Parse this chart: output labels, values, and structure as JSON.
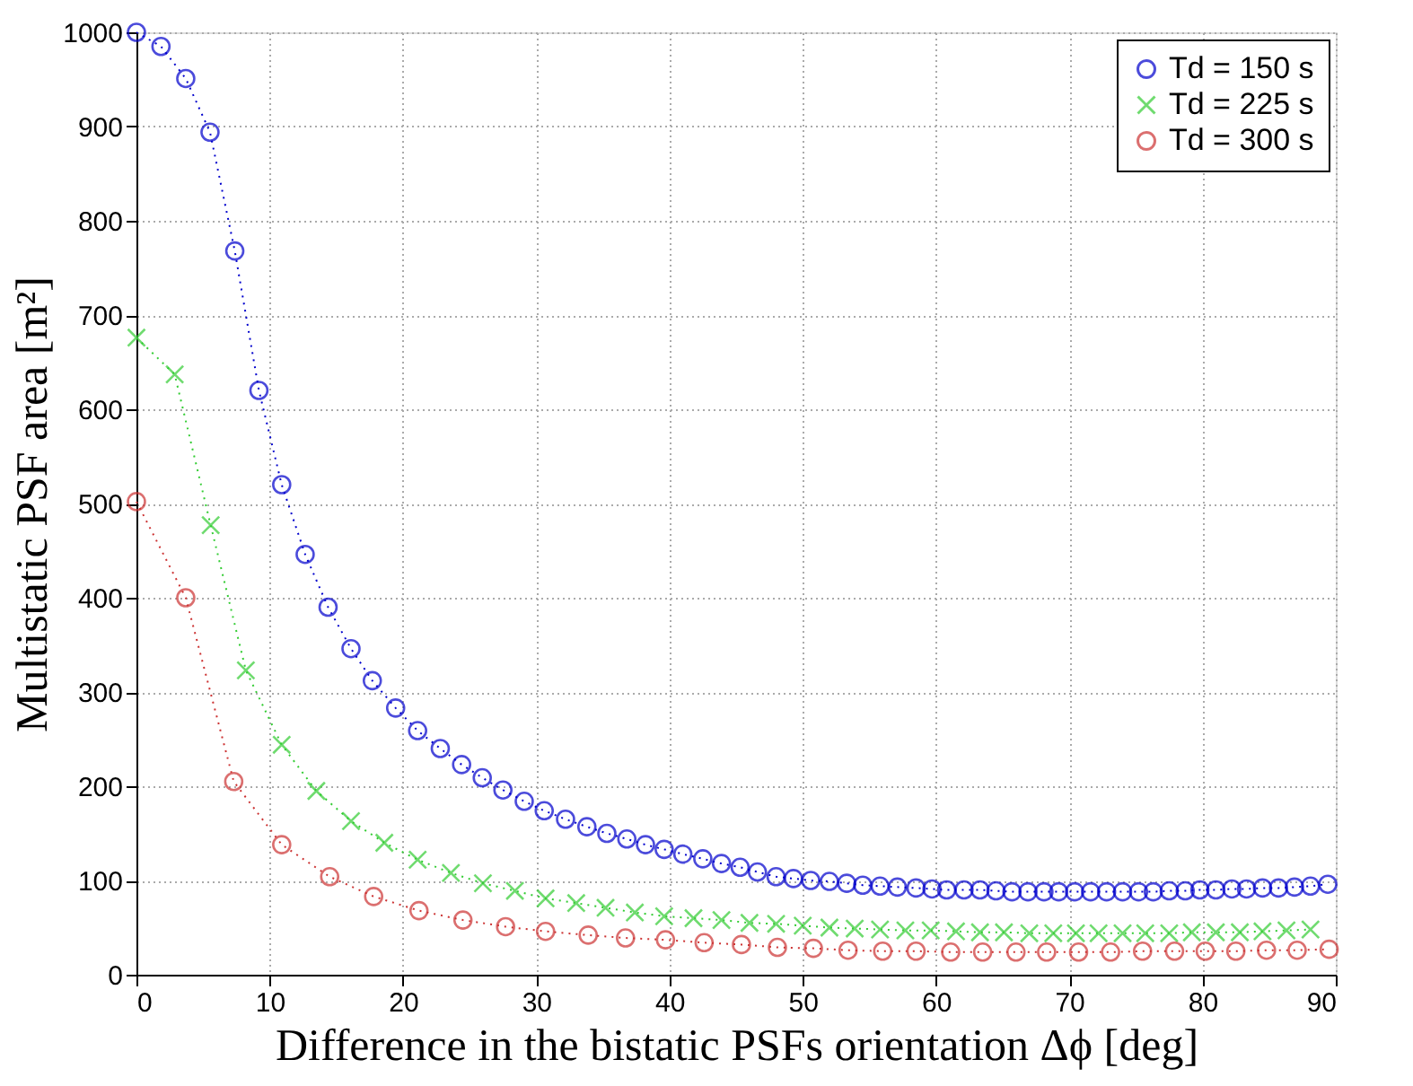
{
  "chart_data": {
    "type": "line",
    "xlabel": "Difference in the bistatic PSFs orientation Δϕ [deg]",
    "ylabel": "Multistatic PSF area [m²]",
    "xlim": [
      0,
      90
    ],
    "xticks": [
      0,
      10,
      20,
      30,
      40,
      50,
      60,
      70,
      80,
      90
    ],
    "ylim": [
      0,
      1000
    ],
    "yticks": [
      0,
      100,
      200,
      300,
      400,
      500,
      600,
      700,
      800,
      900,
      1000
    ],
    "grid": true,
    "legend": "top right",
    "line_style": "dotted",
    "series": [
      {
        "name": "Td = 150 s",
        "color": "#0000cc",
        "marker": "circle",
        "x": [
          0,
          1.84,
          3.7,
          5.52,
          7.38,
          9.19,
          10.9,
          12.66,
          14.38,
          16.1,
          17.7,
          19.45,
          21.1,
          22.8,
          24.4,
          25.95,
          27.5,
          29.1,
          30.6,
          32.2,
          33.8,
          35.3,
          36.8,
          38.2,
          39.6,
          41.0,
          42.5,
          43.9,
          45.3,
          46.6,
          48.0,
          49.3,
          50.6,
          52.0,
          53.3,
          54.5,
          55.8,
          57.1,
          58.5,
          59.7,
          60.8,
          62.1,
          63.3,
          64.5,
          65.7,
          66.9,
          68.1,
          69.2,
          70.4,
          71.6,
          72.8,
          74.0,
          75.2,
          76.3,
          77.5,
          78.7,
          79.8,
          81.0,
          82.2,
          83.3,
          84.5,
          85.7,
          86.9,
          88.1,
          89.4
        ],
        "values": [
          1000,
          985,
          951,
          894,
          768,
          620,
          520,
          446,
          390,
          346,
          312,
          283,
          259,
          240,
          223,
          209,
          196,
          184,
          174,
          165,
          157,
          150,
          144,
          138,
          133,
          128,
          123,
          118,
          114,
          109,
          104,
          102,
          100,
          99,
          97,
          95,
          94,
          93,
          92,
          91,
          90,
          90,
          90,
          89,
          88,
          88,
          88,
          88,
          88,
          88,
          88,
          88,
          88,
          88,
          89,
          89,
          90,
          90,
          91,
          91,
          92,
          92,
          93,
          94,
          96
        ]
      },
      {
        "name": "Td = 225 s",
        "color": "#33cc33",
        "marker": "cross",
        "x": [
          0,
          2.87,
          5.57,
          8.21,
          10.9,
          13.5,
          16.1,
          18.6,
          21.1,
          23.6,
          26.0,
          28.4,
          30.7,
          33.0,
          35.2,
          37.4,
          39.6,
          41.8,
          43.9,
          46.0,
          48.0,
          50.0,
          52.0,
          53.9,
          55.8,
          57.7,
          59.6,
          61.5,
          63.3,
          65.1,
          67.0,
          68.8,
          70.5,
          72.2,
          74.0,
          75.7,
          77.5,
          79.2,
          81.0,
          82.8,
          84.5,
          86.3,
          88.1
        ],
        "values": [
          676,
          637,
          477,
          323,
          244,
          195,
          163,
          140,
          122,
          108,
          97,
          89,
          81,
          76,
          71,
          66,
          62,
          60,
          58,
          55,
          54,
          52,
          50,
          49,
          48,
          47,
          47,
          46,
          45,
          45,
          44,
          44,
          44,
          44,
          44,
          44,
          44,
          45,
          45,
          45,
          46,
          47,
          48
        ]
      },
      {
        "name": "Td = 300 s",
        "color": "#cc3333",
        "marker": "circle",
        "x": [
          0,
          3.7,
          7.3,
          10.9,
          14.5,
          17.8,
          21.2,
          24.5,
          27.7,
          30.7,
          33.9,
          36.7,
          39.7,
          42.6,
          45.4,
          48.1,
          50.8,
          53.4,
          56.0,
          58.5,
          61.1,
          63.5,
          66.0,
          68.3,
          70.7,
          73.1,
          75.5,
          77.9,
          80.2,
          82.5,
          84.8,
          87.1,
          89.5
        ],
        "values": [
          502,
          400,
          205,
          138,
          104,
          83,
          68,
          58,
          51,
          46,
          42,
          39,
          37,
          34,
          32,
          29,
          28,
          26,
          25,
          25,
          24,
          24,
          24,
          24,
          24,
          24,
          25,
          25,
          25,
          25,
          26,
          26,
          27
        ]
      }
    ]
  }
}
